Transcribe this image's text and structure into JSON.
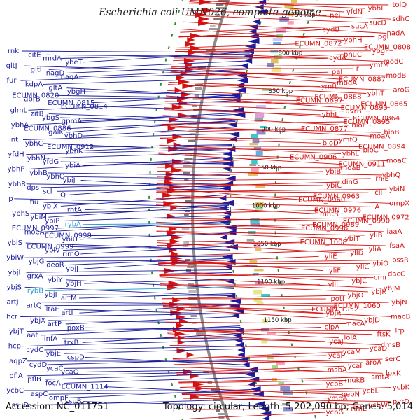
{
  "title": "Escherichia coli UMN026, complete genome",
  "footer": {
    "accession": "Accession: NC_011751",
    "summary": "Topology: circular; Length: 5,202,090 bp; Genes: 5,014"
  },
  "colors": {
    "minus_strand": "#1a1a9c",
    "plus_strand": "#d41111",
    "rna_gene": "#1e9fd1",
    "backbone": "#8c8c8c"
  },
  "scale_labels": [
    "750 kbp",
    "800 kbp",
    "850 kbp",
    "900 kbp",
    "950 kbp",
    "1000 kbp",
    "1050 kbp",
    "1100 kbp",
    "1150 kbp"
  ],
  "left_genes": [
    {
      "t": "rnk",
      "c": "blue"
    },
    {
      "t": "citE",
      "c": "blue"
    },
    {
      "t": "mrdA",
      "c": "blue"
    },
    {
      "t": "ybeT",
      "c": "blue"
    },
    {
      "t": "gltJ",
      "c": "blue"
    },
    {
      "t": "gltI",
      "c": "blue"
    },
    {
      "t": "nagD",
      "c": "blue"
    },
    {
      "t": "nagA",
      "c": "blue"
    },
    {
      "t": "fur",
      "c": "blue"
    },
    {
      "t": "kdpA",
      "c": "blue"
    },
    {
      "t": "gltA",
      "c": "blue"
    },
    {
      "t": "ybgH",
      "c": "blue"
    },
    {
      "t": "ECUMN_0820",
      "c": "blue"
    },
    {
      "t": "abrB",
      "c": "blue"
    },
    {
      "t": "ECUMN_0815",
      "c": "blue"
    },
    {
      "t": "ECUMN_0814",
      "c": "blue"
    },
    {
      "t": "glmL",
      "c": "blue"
    },
    {
      "t": "zitB",
      "c": "blue"
    },
    {
      "t": "ybgS",
      "c": "blue"
    },
    {
      "t": "gpmA",
      "c": "blue"
    },
    {
      "t": "ybhA",
      "c": "blue"
    },
    {
      "t": "ECUMN_0886",
      "c": "blue"
    },
    {
      "t": "galK",
      "c": "blue"
    },
    {
      "t": "ybhD",
      "c": "blue"
    },
    {
      "t": "int",
      "c": "blue"
    },
    {
      "t": "ybhC",
      "c": "blue"
    },
    {
      "t": "ECUMN_0912",
      "c": "blue"
    },
    {
      "t": "ybhK",
      "c": "blue"
    },
    {
      "t": "yfdH",
      "c": "blue"
    },
    {
      "t": "ybhN",
      "c": "blue"
    },
    {
      "t": "yfdG",
      "c": "blue"
    },
    {
      "t": "ybiA",
      "c": "blue"
    },
    {
      "t": "ybhP",
      "c": "blue"
    },
    {
      "t": "ybhB",
      "c": "blue"
    },
    {
      "t": "ybhO",
      "c": "blue"
    },
    {
      "t": "ybiJ",
      "c": "blue"
    },
    {
      "t": "ybhR",
      "c": "blue"
    },
    {
      "t": "dps",
      "c": "blue"
    },
    {
      "t": "scl",
      "c": "blue"
    },
    {
      "t": "Q",
      "c": "blue"
    },
    {
      "t": "p",
      "c": "blue"
    },
    {
      "t": "fiu",
      "c": "blue"
    },
    {
      "t": "ybiX",
      "c": "blue"
    },
    {
      "t": "rhtA",
      "c": "blue"
    },
    {
      "t": "ybhS",
      "c": "blue"
    },
    {
      "t": "ybiM",
      "c": "blue"
    },
    {
      "t": "ybiP",
      "c": "blue"
    },
    {
      "t": "rybA",
      "c": "cyan"
    },
    {
      "t": "ECUMN_0997",
      "c": "blue"
    },
    {
      "t": "moeA",
      "c": "blue"
    },
    {
      "t": "ECUMN_0998",
      "c": "blue"
    },
    {
      "t": "ybiU",
      "c": "blue"
    },
    {
      "t": "ybiS",
      "c": "blue"
    },
    {
      "t": "ECUMN_0999",
      "c": "blue"
    },
    {
      "t": "ybiV",
      "c": "blue"
    },
    {
      "t": "rimO",
      "c": "blue"
    },
    {
      "t": "ybiW",
      "c": "blue"
    },
    {
      "t": "ybjG",
      "c": "blue"
    },
    {
      "t": "deoR",
      "c": "blue"
    },
    {
      "t": "ybjJ",
      "c": "blue"
    },
    {
      "t": "ybjI",
      "c": "blue"
    },
    {
      "t": "grxA",
      "c": "blue"
    },
    {
      "t": "ybiY",
      "c": "blue"
    },
    {
      "t": "ybjH",
      "c": "blue"
    },
    {
      "t": "ybjS",
      "c": "blue"
    },
    {
      "t": "rybB",
      "c": "cyan"
    },
    {
      "t": "ybjI",
      "c": "blue"
    },
    {
      "t": "artM",
      "c": "blue"
    },
    {
      "t": "artJ",
      "c": "blue"
    },
    {
      "t": "artQ",
      "c": "blue"
    },
    {
      "t": "ltaE",
      "c": "blue"
    },
    {
      "t": "artI",
      "c": "blue"
    },
    {
      "t": "hcr",
      "c": "blue"
    },
    {
      "t": "ybjX",
      "c": "blue"
    },
    {
      "t": "artP",
      "c": "blue"
    },
    {
      "t": "poxB",
      "c": "blue"
    },
    {
      "t": "ybjT",
      "c": "blue"
    },
    {
      "t": "aat",
      "c": "blue"
    },
    {
      "t": "infA",
      "c": "blue"
    },
    {
      "t": "trxB",
      "c": "blue"
    },
    {
      "t": "hcp",
      "c": "blue"
    },
    {
      "t": "cydC",
      "c": "blue"
    },
    {
      "t": "ybjE",
      "c": "blue"
    },
    {
      "t": "cspD",
      "c": "blue"
    },
    {
      "t": "aqpZ",
      "c": "blue"
    },
    {
      "t": "cydD",
      "c": "blue"
    },
    {
      "t": "ycaC",
      "c": "blue"
    },
    {
      "t": "ycaO",
      "c": "blue"
    },
    {
      "t": "pflA",
      "c": "blue"
    },
    {
      "t": "pflB",
      "c": "blue"
    },
    {
      "t": "focA",
      "c": "blue"
    },
    {
      "t": "ECUMN_1114",
      "c": "blue"
    },
    {
      "t": "ycbC",
      "c": "blue"
    },
    {
      "t": "aspC",
      "c": "blue"
    },
    {
      "t": "ompF",
      "c": "blue"
    },
    {
      "t": "ssuB",
      "c": "blue"
    },
    {
      "t": "ssuD",
      "c": "blue"
    }
  ],
  "right_genes": [
    "tolQ",
    "ybhI",
    "yfdN",
    "nei",
    "sdhC",
    "sucD",
    "sucA",
    "cydB",
    "nadA",
    "pgl",
    "ybhH",
    "ECUMN_0872",
    "ECUMN_0808",
    "ybgF",
    "pnuC",
    "cydA",
    "modC",
    "ymfM",
    "r",
    "pal",
    "modB",
    "ECUMN_0887",
    "modA",
    "ymfL",
    "aroG",
    "ybhT",
    "ECUMN_0868",
    "ECUMN_0897",
    "ECUMN_0865",
    "ECUMN_0893",
    "uvrB",
    "ybhL",
    "ECUMN_0864",
    "ECUMN_0895",
    "bioF",
    "ECUMN_0877",
    "bioB",
    "moaA",
    "ymfQ",
    "bioD",
    "ECUMN_0894",
    "bioC",
    "ybhL",
    "ECUMN_0906",
    "moaC",
    "ECUMN_0911",
    "moaB",
    "ybiB",
    "ybhQ",
    "rhlE",
    "dinG",
    "ybiC",
    "ybiN",
    "cll",
    "ECUMN_0963",
    "ECUMN_0960",
    "ompX",
    "A",
    "ECUMN_0976",
    "mntR",
    "ECUMN_0972",
    "ECUMN_0990",
    "ECUMN_0989",
    "ECUMN_0996",
    "iaaA",
    "yliB",
    "ybiT",
    "ECUMN_1008",
    "fsaA",
    "yliA",
    "yliD",
    "yliE",
    "bssR",
    "ybiO",
    "yliC",
    "yliF",
    "dacC",
    "cmr",
    "ybjC",
    "yliI",
    "ybjM",
    "ybjK",
    "ybjO",
    "potI",
    "ybjN",
    "ECUMN_1060",
    "ECUMN_1052",
    "ybjR",
    "macB",
    "ybjD",
    "macA",
    "clpA",
    "lrp",
    "ftsK",
    "lolA",
    "ycaJ",
    "dmsB",
    "ycaD",
    "ycaM",
    "ycaP",
    "serC",
    "aroA",
    "ycaI",
    "msbA",
    "lpxK",
    "smtA",
    "mukB",
    "ycbB",
    "ycbK",
    "ycbL",
    "pepN",
    "ymbA",
    "pyrD",
    "ycbW",
    "rlmL",
    "ycbG"
  ]
}
